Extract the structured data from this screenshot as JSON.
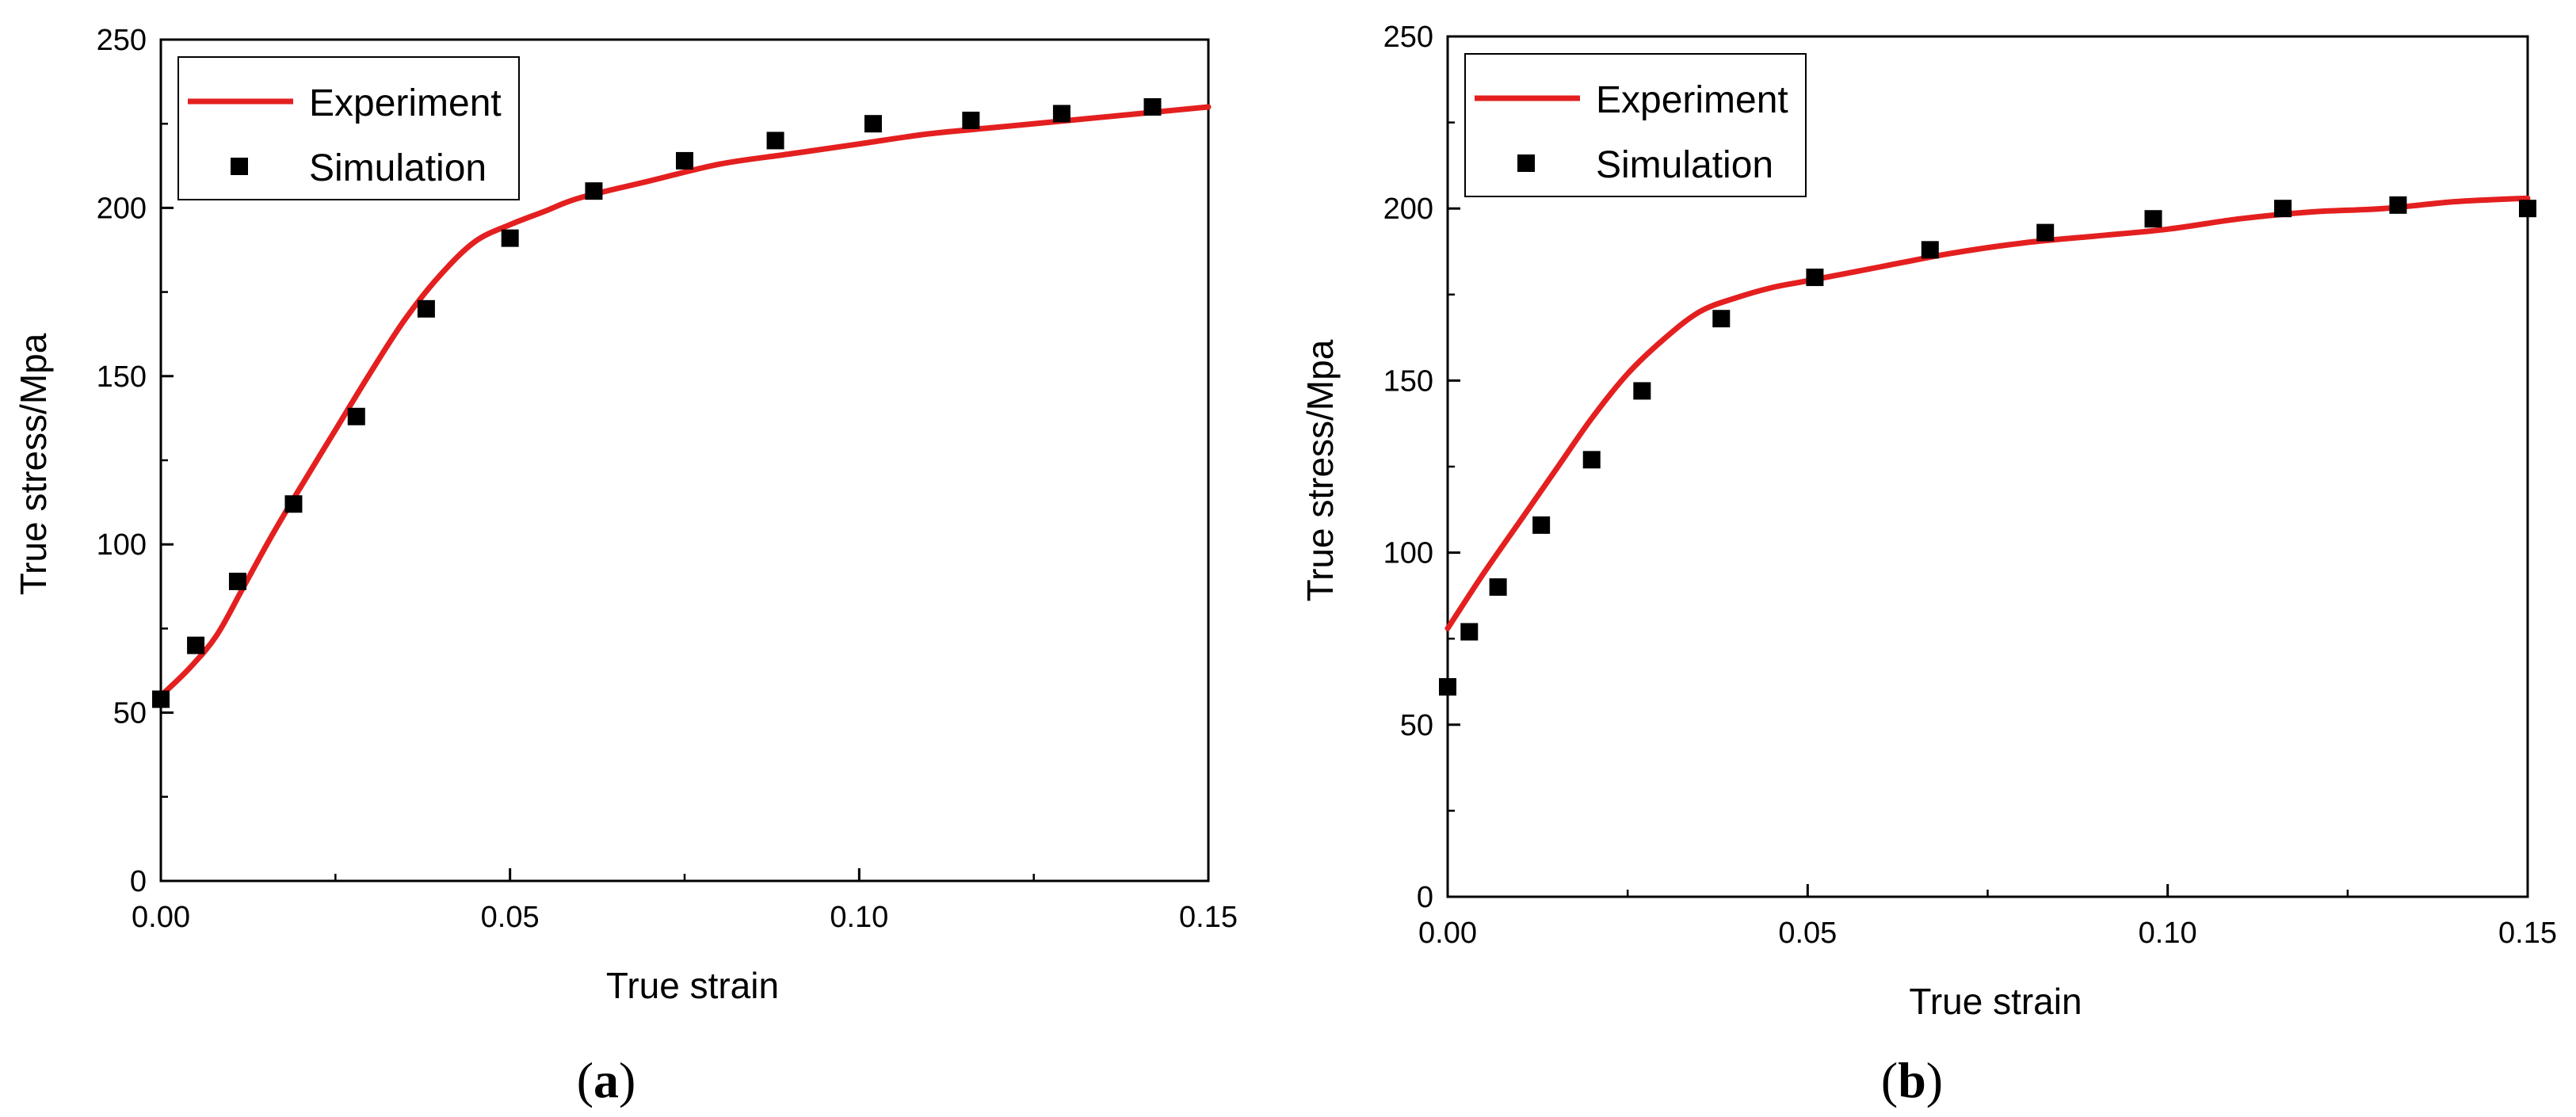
{
  "chart_data": [
    {
      "type": "line",
      "panel": "a",
      "caption": {
        "open": "(",
        "letter": "a",
        "close": ")"
      },
      "xlabel": "True strain",
      "ylabel": "True stress/Mpa",
      "xlim": [
        0,
        0.15
      ],
      "ylim": [
        0,
        250
      ],
      "xticks": [
        0.0,
        0.05,
        0.1,
        0.15
      ],
      "xtick_labels": [
        "0.00",
        "0.05",
        "0.10",
        "0.15"
      ],
      "yticks": [
        0,
        50,
        100,
        150,
        200,
        250
      ],
      "ytick_labels": [
        "0",
        "50",
        "100",
        "150",
        "200",
        "250"
      ],
      "legend_position": "top-left",
      "series": [
        {
          "name": "Experiment",
          "kind": "line",
          "color": "#e41f1f",
          "x": [
            0,
            0.004,
            0.008,
            0.012,
            0.016,
            0.02,
            0.025,
            0.03,
            0.035,
            0.04,
            0.045,
            0.05,
            0.055,
            0.06,
            0.07,
            0.08,
            0.09,
            0.1,
            0.11,
            0.12,
            0.13,
            0.14,
            0.15
          ],
          "y": [
            55,
            63,
            73,
            88,
            103,
            117,
            134,
            151,
            167,
            180,
            190,
            195,
            199,
            203,
            208,
            213,
            216,
            219,
            222,
            224,
            226,
            228,
            230
          ]
        },
        {
          "name": "Simulation",
          "kind": "scatter",
          "color": "#000000",
          "x": [
            0.0,
            0.005,
            0.011,
            0.019,
            0.028,
            0.038,
            0.05,
            0.062,
            0.075,
            0.088,
            0.102,
            0.116,
            0.129,
            0.142
          ],
          "y": [
            54,
            70,
            89,
            112,
            138,
            170,
            191,
            205,
            214,
            220,
            225,
            226,
            228,
            230
          ]
        }
      ]
    },
    {
      "type": "line",
      "panel": "b",
      "caption": {
        "open": "(",
        "letter": "b",
        "close": ")"
      },
      "xlabel": "True strain",
      "ylabel": "True stress/Mpa",
      "xlim": [
        0,
        0.15
      ],
      "ylim": [
        0,
        250
      ],
      "xticks": [
        0.0,
        0.05,
        0.1,
        0.15
      ],
      "xtick_labels": [
        "0.00",
        "0.05",
        "0.10",
        "0.15"
      ],
      "yticks": [
        0,
        50,
        100,
        150,
        200,
        250
      ],
      "ytick_labels": [
        "0",
        "50",
        "100",
        "150",
        "200",
        "250"
      ],
      "legend_position": "top-left",
      "series": [
        {
          "name": "Experiment",
          "kind": "line",
          "color": "#e41f1f",
          "x": [
            0,
            0.005,
            0.01,
            0.015,
            0.02,
            0.025,
            0.03,
            0.035,
            0.04,
            0.045,
            0.05,
            0.06,
            0.07,
            0.08,
            0.09,
            0.1,
            0.11,
            0.12,
            0.13,
            0.14,
            0.15
          ],
          "y": [
            78,
            94,
            109,
            124,
            139,
            152,
            162,
            170,
            174,
            177,
            179,
            183,
            187,
            190,
            192,
            194,
            197,
            199,
            200,
            202,
            203
          ]
        },
        {
          "name": "Simulation",
          "kind": "scatter",
          "color": "#000000",
          "x": [
            0.0,
            0.003,
            0.007,
            0.013,
            0.02,
            0.027,
            0.038,
            0.051,
            0.067,
            0.083,
            0.098,
            0.116,
            0.132,
            0.15
          ],
          "y": [
            61,
            77,
            90,
            108,
            127,
            147,
            168,
            180,
            188,
            193,
            197,
            200,
            201,
            200
          ]
        }
      ]
    }
  ]
}
